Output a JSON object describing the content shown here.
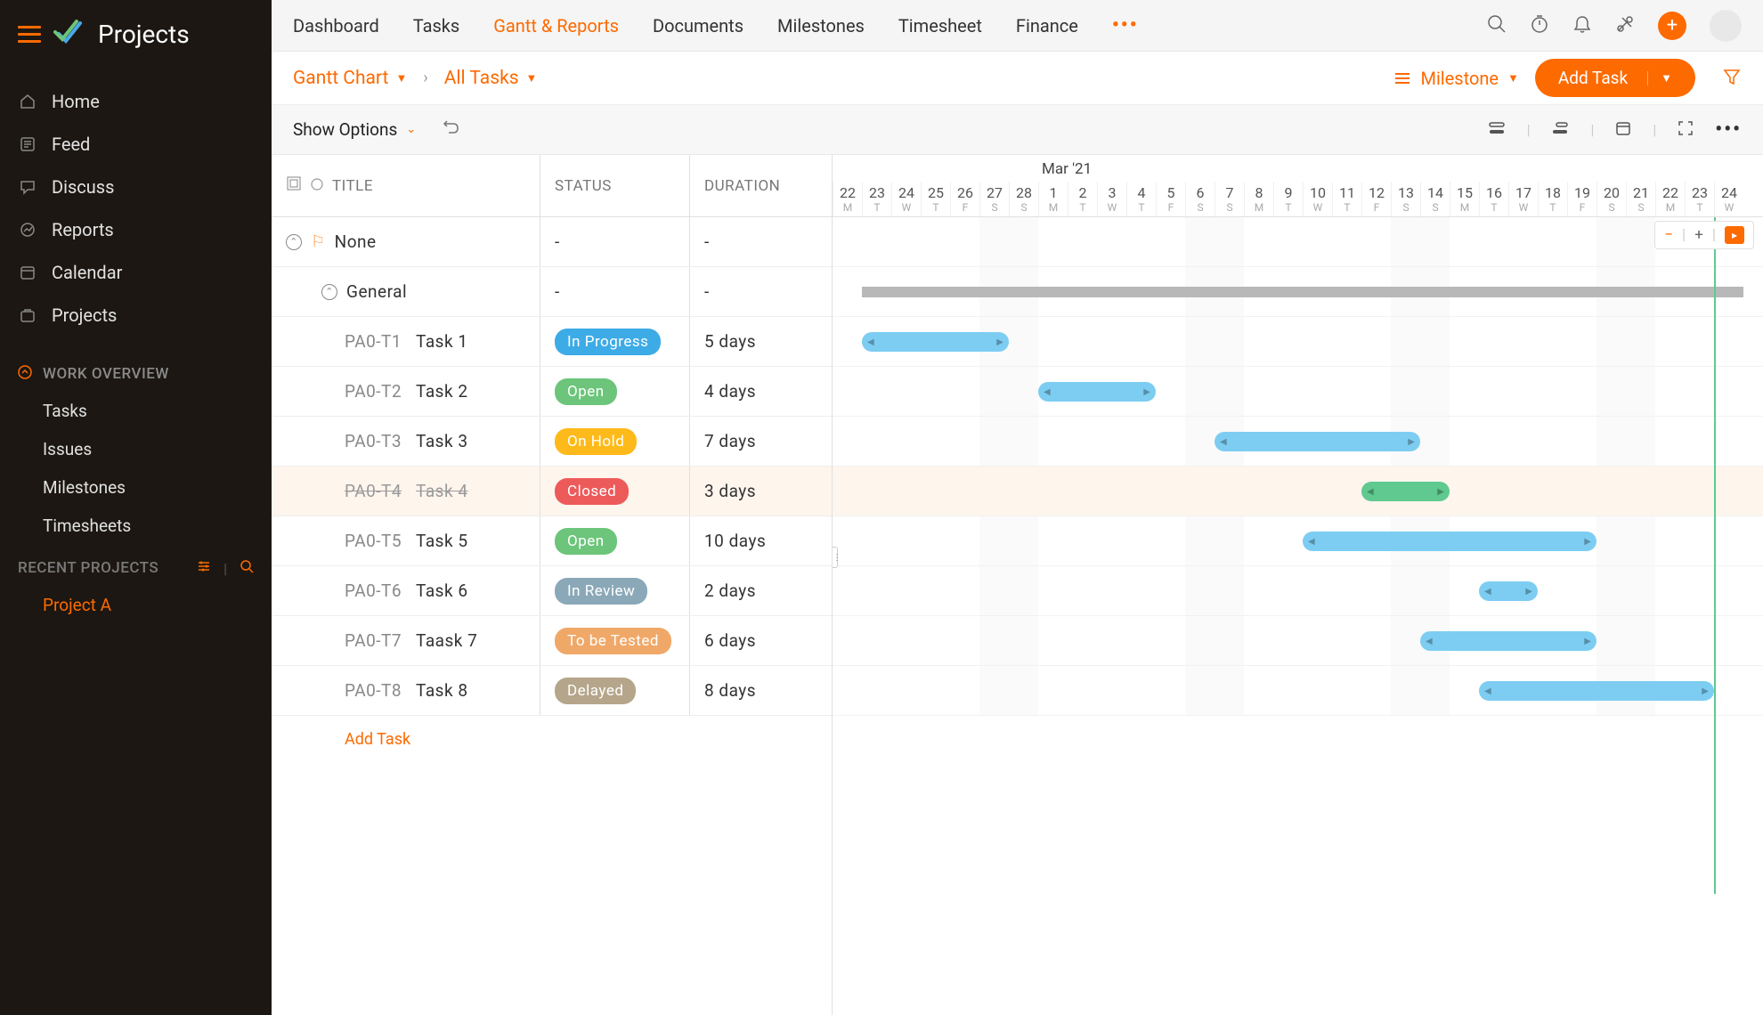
{
  "app": {
    "title": "Projects"
  },
  "sidebar": {
    "nav": [
      {
        "label": "Home",
        "icon": "home"
      },
      {
        "label": "Feed",
        "icon": "feed"
      },
      {
        "label": "Discuss",
        "icon": "discuss"
      },
      {
        "label": "Reports",
        "icon": "reports"
      },
      {
        "label": "Calendar",
        "icon": "calendar"
      },
      {
        "label": "Projects",
        "icon": "projects"
      }
    ],
    "workOverview": {
      "label": "WORK OVERVIEW",
      "items": [
        "Tasks",
        "Issues",
        "Milestones",
        "Timesheets"
      ]
    },
    "recentProjects": {
      "label": "RECENT PROJECTS",
      "items": [
        "Project A"
      ]
    }
  },
  "topnav": {
    "tabs": [
      "Dashboard",
      "Tasks",
      "Gantt & Reports",
      "Documents",
      "Milestones",
      "Timesheet",
      "Finance"
    ],
    "activeIndex": 2
  },
  "breadcrumb": {
    "primary": "Gantt Chart",
    "secondary": "All Tasks",
    "milestone": "Milestone",
    "addTask": "Add Task"
  },
  "optionsBar": {
    "showOptions": "Show Options"
  },
  "table": {
    "headers": {
      "title": "TITLE",
      "status": "STATUS",
      "duration": "DURATION"
    },
    "groups": [
      {
        "type": "milestone",
        "label": "None",
        "status": "-",
        "duration": "-"
      },
      {
        "type": "group",
        "label": "General",
        "status": "-",
        "duration": "-"
      }
    ],
    "tasks": [
      {
        "id": "PA0-T1",
        "name": "Task 1",
        "status": "In Progress",
        "statusColor": "#3dabe6",
        "duration": "5 days",
        "startDay": 1,
        "lengthDays": 5,
        "barColor": "#7dcdf2",
        "closed": false
      },
      {
        "id": "PA0-T2",
        "name": "Task 2",
        "status": "Open",
        "statusColor": "#6cc57a",
        "duration": "4 days",
        "startDay": 7,
        "lengthDays": 4,
        "barColor": "#7dcdf2",
        "closed": false
      },
      {
        "id": "PA0-T3",
        "name": "Task 3",
        "status": "On Hold",
        "statusColor": "#fdba1a",
        "duration": "7 days",
        "startDay": 13,
        "lengthDays": 7,
        "barColor": "#7dcdf2",
        "closed": false
      },
      {
        "id": "PA0-T4",
        "name": "Task 4",
        "status": "Closed",
        "statusColor": "#ed5a5a",
        "duration": "3 days",
        "startDay": 18,
        "lengthDays": 3,
        "barColor": "#5fc98f",
        "closed": true
      },
      {
        "id": "PA0-T5",
        "name": "Task 5",
        "status": "Open",
        "statusColor": "#6cc57a",
        "duration": "10 days",
        "startDay": 16,
        "lengthDays": 10,
        "barColor": "#7dcdf2",
        "closed": false
      },
      {
        "id": "PA0-T6",
        "name": "Task 6",
        "status": "In Review",
        "statusColor": "#8aa8b8",
        "duration": "2 days",
        "startDay": 22,
        "lengthDays": 2,
        "barColor": "#7dcdf2",
        "closed": false
      },
      {
        "id": "PA0-T7",
        "name": "Taask 7",
        "status": "To be Tested",
        "statusColor": "#f0a868",
        "duration": "6 days",
        "startDay": 20,
        "lengthDays": 6,
        "barColor": "#7dcdf2",
        "closed": false
      },
      {
        "id": "PA0-T8",
        "name": "Task 8",
        "status": "Delayed",
        "statusColor": "#b5a58a",
        "duration": "8 days",
        "startDay": 22,
        "lengthDays": 8,
        "barColor": "#7dcdf2",
        "closed": false
      }
    ],
    "addTaskLabel": "Add Task"
  },
  "timeline": {
    "monthLabel": "Mar '21",
    "monthStartIndex": 7,
    "dayWidth": 33,
    "days": [
      {
        "n": "22",
        "l": "M"
      },
      {
        "n": "23",
        "l": "T"
      },
      {
        "n": "24",
        "l": "W"
      },
      {
        "n": "25",
        "l": "T"
      },
      {
        "n": "26",
        "l": "F"
      },
      {
        "n": "27",
        "l": "S"
      },
      {
        "n": "28",
        "l": "S"
      },
      {
        "n": "1",
        "l": "M"
      },
      {
        "n": "2",
        "l": "T"
      },
      {
        "n": "3",
        "l": "W"
      },
      {
        "n": "4",
        "l": "T"
      },
      {
        "n": "5",
        "l": "F"
      },
      {
        "n": "6",
        "l": "S"
      },
      {
        "n": "7",
        "l": "S"
      },
      {
        "n": "8",
        "l": "M"
      },
      {
        "n": "9",
        "l": "T"
      },
      {
        "n": "10",
        "l": "W"
      },
      {
        "n": "11",
        "l": "T"
      },
      {
        "n": "12",
        "l": "F"
      },
      {
        "n": "13",
        "l": "S"
      },
      {
        "n": "14",
        "l": "S"
      },
      {
        "n": "15",
        "l": "M"
      },
      {
        "n": "16",
        "l": "T"
      },
      {
        "n": "17",
        "l": "W"
      },
      {
        "n": "18",
        "l": "T"
      },
      {
        "n": "19",
        "l": "F"
      },
      {
        "n": "20",
        "l": "S"
      },
      {
        "n": "21",
        "l": "S"
      },
      {
        "n": "22",
        "l": "M"
      },
      {
        "n": "23",
        "l": "T"
      },
      {
        "n": "24",
        "l": "W"
      }
    ],
    "weekendIndices": [
      5,
      6,
      12,
      13,
      19,
      20,
      26,
      27
    ],
    "summaryBar": {
      "startDay": 1,
      "lengthDays": 30
    },
    "todayLineDay": 30
  },
  "colors": {
    "accent": "#fd6a00",
    "sidebarBg": "#1c1712",
    "barDefault": "#7dcdf2",
    "barGreen": "#5fc98f"
  }
}
